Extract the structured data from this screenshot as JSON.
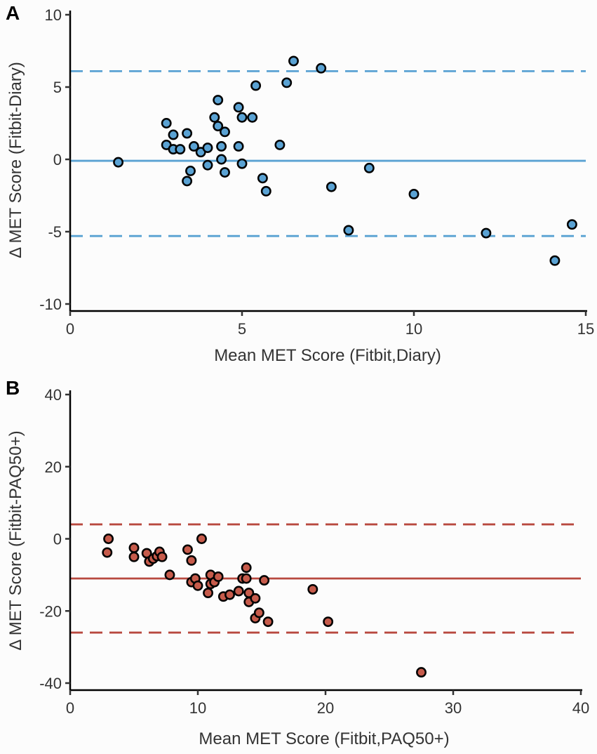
{
  "chart_data": [
    {
      "panel": "A",
      "type": "scatter",
      "title": "",
      "xlabel": "Mean MET Score (Fitbit,Diary)",
      "ylabel": "Δ MET Score (Fitbit-Diary)",
      "xlim": [
        0,
        15
      ],
      "ylim": [
        -10,
        10
      ],
      "xticks": [
        "0",
        "5",
        "10",
        "15"
      ],
      "yticks": [
        "10",
        "5",
        "0",
        "-5",
        "-10"
      ],
      "color": "#5aa2d3",
      "line_color": "#5aa2d3",
      "mean_bias": -0.1,
      "upper_loa": 6.1,
      "lower_loa": -5.3,
      "points": [
        {
          "x": 1.4,
          "y": -0.2
        },
        {
          "x": 2.8,
          "y": 2.5
        },
        {
          "x": 2.8,
          "y": 1.0
        },
        {
          "x": 3.0,
          "y": 1.7
        },
        {
          "x": 3.0,
          "y": 0.7
        },
        {
          "x": 3.2,
          "y": 0.7
        },
        {
          "x": 3.4,
          "y": 1.8
        },
        {
          "x": 3.4,
          "y": -1.5
        },
        {
          "x": 3.5,
          "y": -0.8
        },
        {
          "x": 3.6,
          "y": 0.9
        },
        {
          "x": 3.8,
          "y": 0.5
        },
        {
          "x": 4.0,
          "y": -0.4
        },
        {
          "x": 4.0,
          "y": 0.8
        },
        {
          "x": 4.2,
          "y": 2.9
        },
        {
          "x": 4.3,
          "y": 4.1
        },
        {
          "x": 4.3,
          "y": 2.3
        },
        {
          "x": 4.4,
          "y": 0.9
        },
        {
          "x": 4.4,
          "y": 0.0
        },
        {
          "x": 4.5,
          "y": 1.9
        },
        {
          "x": 4.5,
          "y": -0.9
        },
        {
          "x": 4.9,
          "y": 3.6
        },
        {
          "x": 4.9,
          "y": 0.9
        },
        {
          "x": 5.0,
          "y": 2.9
        },
        {
          "x": 5.0,
          "y": -0.3
        },
        {
          "x": 5.3,
          "y": 2.9
        },
        {
          "x": 5.4,
          "y": 5.1
        },
        {
          "x": 5.6,
          "y": -1.3
        },
        {
          "x": 5.7,
          "y": -2.2
        },
        {
          "x": 6.1,
          "y": 1.0
        },
        {
          "x": 6.3,
          "y": 5.3
        },
        {
          "x": 6.5,
          "y": 6.8
        },
        {
          "x": 7.3,
          "y": 6.3
        },
        {
          "x": 7.6,
          "y": -1.9
        },
        {
          "x": 8.1,
          "y": -4.9
        },
        {
          "x": 8.7,
          "y": -0.6
        },
        {
          "x": 10.0,
          "y": -2.4
        },
        {
          "x": 12.1,
          "y": -5.1
        },
        {
          "x": 14.1,
          "y": -7.0
        },
        {
          "x": 14.6,
          "y": -4.5
        }
      ]
    },
    {
      "panel": "B",
      "type": "scatter",
      "title": "",
      "xlabel": "Mean MET Score (Fitbit,PAQ50+)",
      "ylabel": "Δ MET Score (Fitbit-PAQ50+)",
      "xlim": [
        0,
        40
      ],
      "ylim": [
        -40,
        40
      ],
      "xticks": [
        "0",
        "10",
        "20",
        "30",
        "40"
      ],
      "yticks": [
        "40",
        "20",
        "0",
        "-20",
        "-40"
      ],
      "color": "#c65b4b",
      "line_color": "#b8493f",
      "mean_bias": -11.0,
      "upper_loa": 4.0,
      "lower_loa": -26.0,
      "points": [
        {
          "x": 3.0,
          "y": 0.0
        },
        {
          "x": 2.9,
          "y": -3.8
        },
        {
          "x": 5.0,
          "y": -2.5
        },
        {
          "x": 5.0,
          "y": -5.0
        },
        {
          "x": 6.0,
          "y": -4.0
        },
        {
          "x": 6.2,
          "y": -6.3
        },
        {
          "x": 6.5,
          "y": -5.5
        },
        {
          "x": 6.8,
          "y": -4.8
        },
        {
          "x": 7.0,
          "y": -3.6
        },
        {
          "x": 7.2,
          "y": -5.0
        },
        {
          "x": 7.8,
          "y": -10.0
        },
        {
          "x": 9.2,
          "y": -3.0
        },
        {
          "x": 9.5,
          "y": -6.0
        },
        {
          "x": 9.5,
          "y": -12.0
        },
        {
          "x": 9.8,
          "y": -11.0
        },
        {
          "x": 10.0,
          "y": -13.0
        },
        {
          "x": 10.3,
          "y": 0.0
        },
        {
          "x": 10.8,
          "y": -15.0
        },
        {
          "x": 11.0,
          "y": -12.5
        },
        {
          "x": 11.0,
          "y": -10.0
        },
        {
          "x": 11.3,
          "y": -12.0
        },
        {
          "x": 11.6,
          "y": -10.5
        },
        {
          "x": 12.0,
          "y": -16.0
        },
        {
          "x": 12.5,
          "y": -15.5
        },
        {
          "x": 13.2,
          "y": -14.5
        },
        {
          "x": 13.5,
          "y": -11.0
        },
        {
          "x": 13.8,
          "y": -8.0
        },
        {
          "x": 13.8,
          "y": -11.0
        },
        {
          "x": 14.0,
          "y": -15.0
        },
        {
          "x": 14.0,
          "y": -17.5
        },
        {
          "x": 14.5,
          "y": -16.5
        },
        {
          "x": 14.5,
          "y": -22.0
        },
        {
          "x": 14.8,
          "y": -20.5
        },
        {
          "x": 15.2,
          "y": -11.5
        },
        {
          "x": 15.5,
          "y": -23.0
        },
        {
          "x": 19.0,
          "y": -14.0
        },
        {
          "x": 20.2,
          "y": -23.0
        },
        {
          "x": 27.5,
          "y": -37.0
        }
      ]
    }
  ]
}
